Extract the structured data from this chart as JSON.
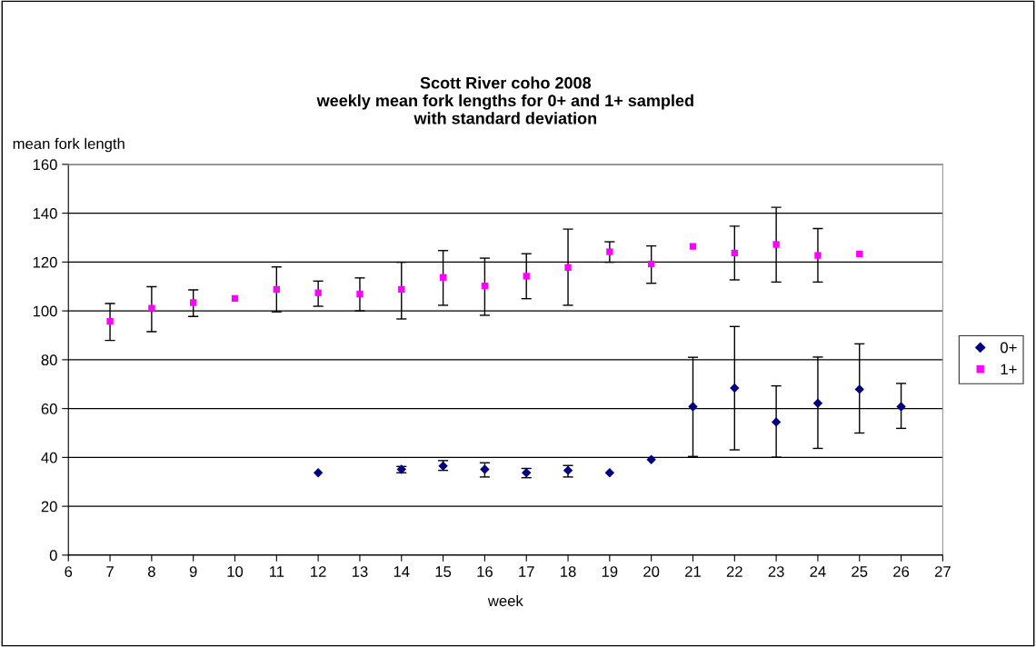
{
  "chart_data": {
    "type": "scatter",
    "title": "Scott River coho 2008\nweekly mean fork lengths for 0+ and 1+ sampled\nwith standard deviation",
    "xlabel": "week",
    "ylabel": "mean fork length",
    "xlim": [
      6,
      27
    ],
    "xticks": [
      6,
      7,
      8,
      9,
      10,
      11,
      12,
      13,
      14,
      15,
      16,
      17,
      18,
      19,
      20,
      21,
      22,
      23,
      24,
      25,
      26,
      27
    ],
    "ylim": [
      0,
      160
    ],
    "yticks": [
      0,
      20,
      40,
      60,
      80,
      100,
      120,
      140,
      160
    ],
    "grid": "y",
    "legend": "right",
    "series": [
      {
        "name": "0+",
        "color": "#000080",
        "marker": "diamond",
        "x": [
          12,
          14,
          15,
          16,
          17,
          18,
          19,
          20,
          21,
          22,
          23,
          24,
          25,
          26
        ],
        "values": [
          33.7,
          35.1,
          36.5,
          35.1,
          33.7,
          34.7,
          33.7,
          39.1,
          60.8,
          68.4,
          54.5,
          62.2,
          67.9,
          60.8
        ],
        "errors": [
          null,
          [
            33.7,
            36.3
          ],
          [
            34.7,
            38.7
          ],
          [
            32.0,
            37.8
          ],
          [
            31.7,
            35.5
          ],
          [
            32.0,
            36.7
          ],
          null,
          null,
          [
            40.4,
            81.0
          ],
          [
            43.1,
            93.6
          ],
          [
            40.1,
            69.3
          ],
          [
            43.7,
            81.1
          ],
          [
            50.0,
            86.5
          ],
          [
            51.9,
            70.3
          ]
        ]
      },
      {
        "name": "1+",
        "color": "#ff00ff",
        "marker": "square",
        "x": [
          7,
          8,
          9,
          10,
          11,
          12,
          13,
          14,
          15,
          16,
          17,
          18,
          19,
          20,
          21,
          22,
          23,
          24,
          25
        ],
        "values": [
          95.7,
          101.1,
          103.4,
          105.1,
          108.8,
          107.4,
          106.9,
          108.8,
          113.7,
          110.2,
          114.2,
          117.8,
          124.2,
          119.2,
          126.4,
          123.7,
          127.2,
          122.7,
          123.3
        ],
        "errors": [
          [
            87.9,
            103.0
          ],
          [
            91.5,
            109.9
          ],
          [
            97.7,
            108.6
          ],
          null,
          [
            99.6,
            118.0
          ],
          [
            101.9,
            112.2
          ],
          [
            100.0,
            113.5
          ],
          [
            96.7,
            119.9
          ],
          [
            102.3,
            124.7
          ],
          [
            98.2,
            121.6
          ],
          [
            105.0,
            123.4
          ],
          [
            102.3,
            133.5
          ],
          [
            119.9,
            128.3
          ],
          [
            111.3,
            126.6
          ],
          null,
          [
            112.7,
            134.7
          ],
          [
            111.8,
            142.4
          ],
          [
            111.8,
            133.7
          ],
          null
        ]
      }
    ]
  }
}
